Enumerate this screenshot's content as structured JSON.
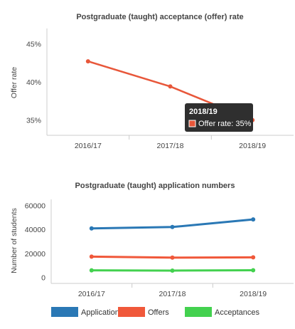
{
  "chart_data": [
    {
      "type": "line",
      "title": "Postgraduate (taught) acceptance (offer) rate",
      "ylabel": "Offer rate",
      "categories": [
        "2016/17",
        "2017/18",
        "2018/19"
      ],
      "yticks": [
        "35%",
        "40%",
        "45%"
      ],
      "ylim": [
        33,
        47
      ],
      "series": [
        {
          "values": [
            42.7,
            39.4,
            35.0
          ],
          "color": "#e8573a"
        }
      ],
      "tooltip": {
        "title": "2018/19",
        "text": "Offer rate: 35%",
        "color": "#e8573a"
      }
    },
    {
      "type": "line",
      "title": "Postgraduate (taught) application numbers",
      "ylabel": "Number of students",
      "categories": [
        "2016/17",
        "2017/18",
        "2018/19"
      ],
      "yticks": [
        "0",
        "20000",
        "40000",
        "60000"
      ],
      "ylim": [
        -5000,
        65000
      ],
      "legend_position": "bottom",
      "series": [
        {
          "name": "Applications",
          "values": [
            40800,
            42000,
            48300
          ],
          "color": "#2a78b5"
        },
        {
          "name": "Offers",
          "values": [
            17300,
            16500,
            16700
          ],
          "color": "#f0583a"
        },
        {
          "name": "Acceptances",
          "values": [
            5900,
            5700,
            6000
          ],
          "color": "#43d14f"
        }
      ]
    }
  ]
}
